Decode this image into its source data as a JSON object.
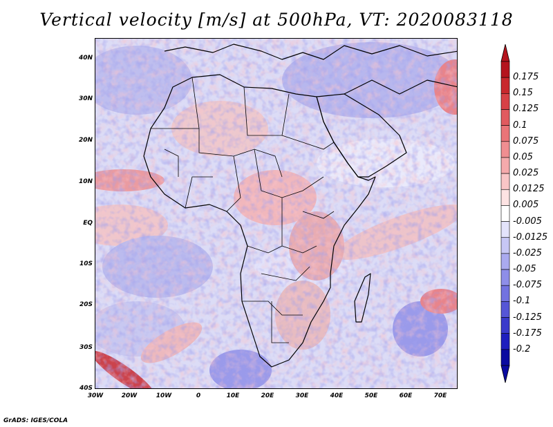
{
  "title": "Vertical velocity [m/s] at 500hPa, VT: 2020083118",
  "footer": "GrADS: IGES/COLA",
  "lat_labels": [
    "40N",
    "30N",
    "20N",
    "10N",
    "EQ",
    "10S",
    "20S",
    "30S",
    "40S"
  ],
  "lon_labels": [
    "30W",
    "20W",
    "10W",
    "0",
    "10E",
    "20E",
    "30E",
    "40E",
    "50E",
    "60E",
    "70E"
  ],
  "colorbar": {
    "labels": [
      "0.175",
      "0.15",
      "0.125",
      "0.1",
      "0.075",
      "0.05",
      "0.025",
      "0.0125",
      "0.005",
      "-0.005",
      "-0.0125",
      "-0.025",
      "-0.05",
      "-0.075",
      "-0.1",
      "-0.125",
      "-0.175",
      "-0.2"
    ],
    "colors": [
      "#b4141e",
      "#c8282d",
      "#d74146",
      "#e15a5f",
      "#ea7478",
      "#f08e91",
      "#f5aaac",
      "#f9c6c7",
      "#fde3e3",
      "#ffffff",
      "#e3e3fb",
      "#c7c7f5",
      "#aaaaef",
      "#8e8ee8",
      "#7272e0",
      "#5656d6",
      "#3a3acb",
      "#1e1ebe",
      "#0a0aa0"
    ]
  },
  "map": {
    "background_color": "#d8d8f4",
    "land_outline_color": "#000000"
  }
}
